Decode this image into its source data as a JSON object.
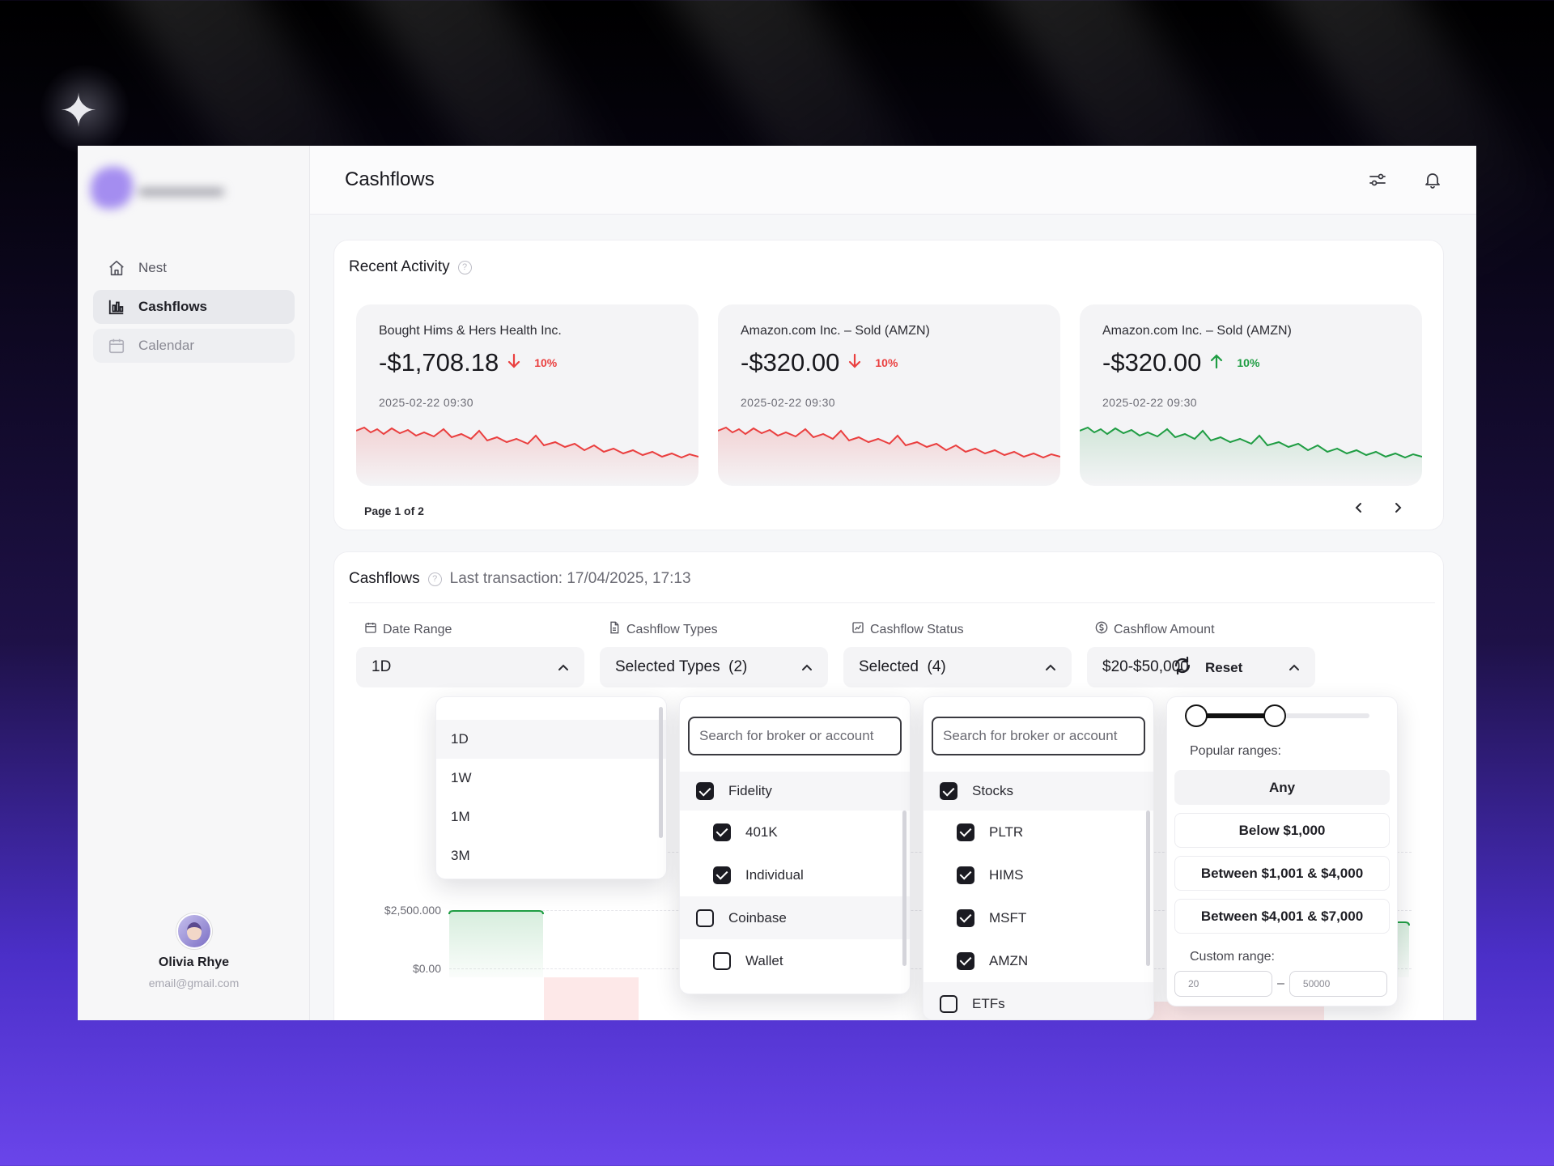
{
  "app": {
    "page_title": "Cashflows"
  },
  "sidebar": {
    "items": [
      {
        "label": "Nest",
        "icon": "home-icon"
      },
      {
        "label": "Cashflows",
        "icon": "bar-chart-icon",
        "active": true
      },
      {
        "label": "Calendar",
        "icon": "calendar-icon"
      }
    ],
    "user": {
      "name": "Olivia Rhye",
      "email": "email@gmail.com"
    }
  },
  "header": {
    "icons": [
      "sliders-icon",
      "bell-icon"
    ]
  },
  "recent_activity": {
    "title": "Recent Activity",
    "cards": [
      {
        "name": "Bought Hims & Hers Health Inc.",
        "amount": "-$1,708.18",
        "change": "10%",
        "direction": "down",
        "date": "2025-02-22 09:30",
        "color": "#ea3f3f"
      },
      {
        "name": "Amazon.com Inc. – Sold (AMZN)",
        "amount": "-$320.00",
        "change": "10%",
        "direction": "down",
        "date": "2025-02-22 09:30",
        "color": "#ea3f3f"
      },
      {
        "name": "Amazon.com Inc. – Sold (AMZN)",
        "amount": "-$320.00",
        "change": "10%",
        "direction": "up",
        "date": "2025-02-22 09:30",
        "color": "#1f9d43"
      }
    ],
    "pager": "Page 1 of 2"
  },
  "cashflows": {
    "title": "Cashflows",
    "last_transaction": "Last transaction: 17/04/2025, 17:13",
    "filters": {
      "date_range": {
        "label": "Date Range",
        "value": "1D",
        "options": [
          "1D",
          "1W",
          "1M",
          "3M"
        ]
      },
      "types": {
        "label": "Cashflow Types",
        "value": "Selected Types  (2)",
        "search_placeholder": "Search for broker or account",
        "options": [
          {
            "label": "Fidelity",
            "checked": true,
            "level": 0
          },
          {
            "label": "401K",
            "checked": true,
            "level": 1
          },
          {
            "label": "Individual",
            "checked": true,
            "level": 1
          },
          {
            "label": "Coinbase",
            "checked": false,
            "level": 0
          },
          {
            "label": "Wallet",
            "checked": false,
            "level": 1
          }
        ]
      },
      "status": {
        "label": "Cashflow Status",
        "value": "Selected  (4)",
        "search_placeholder": "Search for broker or account",
        "options": [
          {
            "label": "Stocks",
            "checked": true,
            "level": 0
          },
          {
            "label": "PLTR",
            "checked": true,
            "level": 1
          },
          {
            "label": "HIMS",
            "checked": true,
            "level": 1
          },
          {
            "label": "MSFT",
            "checked": true,
            "level": 1
          },
          {
            "label": "AMZN",
            "checked": true,
            "level": 1
          },
          {
            "label": "ETFs",
            "checked": false,
            "level": 0
          }
        ]
      },
      "amount": {
        "label": "Cashflow Amount",
        "value": "$20-$50,000",
        "slider_low": 0,
        "slider_high": 0.47,
        "popular_label": "Popular ranges:",
        "ranges": [
          "Any",
          "Below $1,000",
          "Between $1,001 & $4,000",
          "Between $4,001 & $7,000"
        ],
        "selected_range": "Any",
        "custom_label": "Custom range:",
        "custom_min": "20",
        "custom_max": "50000"
      },
      "reset_label": "Reset"
    },
    "chart": {
      "y_ticks": [
        "$2,500.000",
        "$0.00"
      ]
    }
  },
  "colors": {
    "positive": "#1f9d43",
    "negative": "#ea3f3f",
    "accent": "#6a45ea"
  }
}
